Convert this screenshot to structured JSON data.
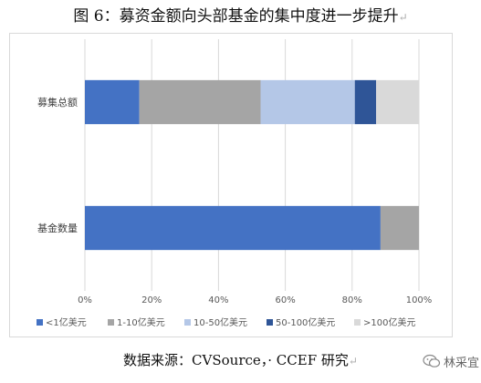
{
  "figure": {
    "title": "图 6：募资金额向头部基金的集中度进一步提升",
    "para_mark": "↵",
    "source": "数据来源：CVSource，· CCEF 研究",
    "watermark": "林采宜",
    "watermark_icon": "wechat-icon"
  },
  "chart_data": {
    "type": "bar",
    "orientation": "horizontal",
    "stacked": true,
    "normalized": true,
    "categories": [
      "募集总额",
      "基金数量"
    ],
    "series": [
      {
        "name": "<1亿美元",
        "color": "#4472C4",
        "values": [
          16.3,
          88.5
        ]
      },
      {
        "name": "1-10亿美元",
        "color": "#A5A5A5",
        "values": [
          36.3,
          11.5
        ]
      },
      {
        "name": "10-50亿美元",
        "color": "#B4C7E7",
        "values": [
          28.2,
          0
        ]
      },
      {
        "name": "50-100亿美元",
        "color": "#2F5597",
        "values": [
          6.4,
          0
        ]
      },
      {
        "name": ">100亿美元",
        "color": "#D9D9D9",
        "values": [
          12.8,
          0
        ]
      }
    ],
    "xlim": [
      0,
      100
    ],
    "xticks": [
      "0%",
      "20%",
      "40%",
      "60%",
      "80%",
      "100%"
    ],
    "grid": true,
    "legend_position": "bottom"
  }
}
